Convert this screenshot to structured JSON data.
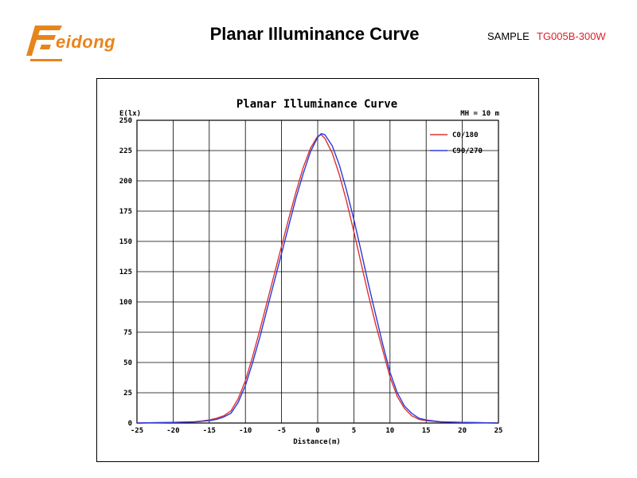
{
  "header": {
    "logo_text": "eidong",
    "page_title": "Planar Illuminance Curve",
    "sample_label": "SAMPLE",
    "sample_code": "TG005B-300W"
  },
  "colors": {
    "brand": "#e8841c",
    "sample_code": "#e0202a",
    "series_c0": "#e03030",
    "series_c90": "#2a3ad8"
  },
  "chart_data": {
    "type": "line",
    "title": "Planar Illuminance Curve",
    "annotation": "MH = 10 m",
    "xlabel": "Distance(m)",
    "ylabel": "E(lx)",
    "xlim": [
      -25,
      25
    ],
    "ylim": [
      0,
      250
    ],
    "xticks": [
      -25,
      -20,
      -15,
      -10,
      -5,
      0,
      5,
      10,
      15,
      20,
      25
    ],
    "yticks": [
      0,
      25,
      50,
      75,
      100,
      125,
      150,
      175,
      200,
      225,
      250
    ],
    "grid": true,
    "legend_position": "top-right",
    "series": [
      {
        "name": "C0/180",
        "color": "#e03030",
        "x": [
          -25,
          -20,
          -17,
          -15,
          -14,
          -13,
          -12,
          -11,
          -10,
          -9,
          -8,
          -7,
          -6,
          -5,
          -4,
          -3,
          -2,
          -1,
          0,
          0.5,
          1,
          2,
          3,
          4,
          5,
          6,
          7,
          8,
          9,
          10,
          11,
          12,
          13,
          14,
          15,
          17,
          20,
          25
        ],
        "y": [
          0,
          0.5,
          1,
          2.5,
          4,
          6,
          10,
          20,
          35,
          55,
          77,
          100,
          123,
          146,
          169,
          191,
          211,
          227,
          237,
          238,
          235,
          223,
          205,
          183,
          158,
          132,
          106,
          82,
          60,
          38,
          22,
          12,
          6,
          3,
          2,
          1,
          0.5,
          0
        ]
      },
      {
        "name": "C90/270",
        "color": "#2a3ad8",
        "x": [
          -25,
          -20,
          -17,
          -15,
          -14,
          -13,
          -12,
          -11,
          -10,
          -9,
          -8,
          -7,
          -6,
          -5,
          -4,
          -3,
          -2,
          -1,
          0,
          0.5,
          1,
          2,
          3,
          4,
          5,
          6,
          7,
          8,
          9,
          10,
          11,
          12,
          13,
          14,
          15,
          17,
          20,
          25
        ],
        "y": [
          0,
          0.5,
          1,
          2,
          3,
          5,
          8,
          17,
          31,
          50,
          71,
          94,
          117,
          140,
          163,
          186,
          206,
          224,
          236,
          239,
          238,
          229,
          213,
          192,
          168,
          142,
          115,
          90,
          65,
          42,
          25,
          14,
          8,
          4,
          2.5,
          1,
          0.5,
          0
        ]
      }
    ]
  }
}
